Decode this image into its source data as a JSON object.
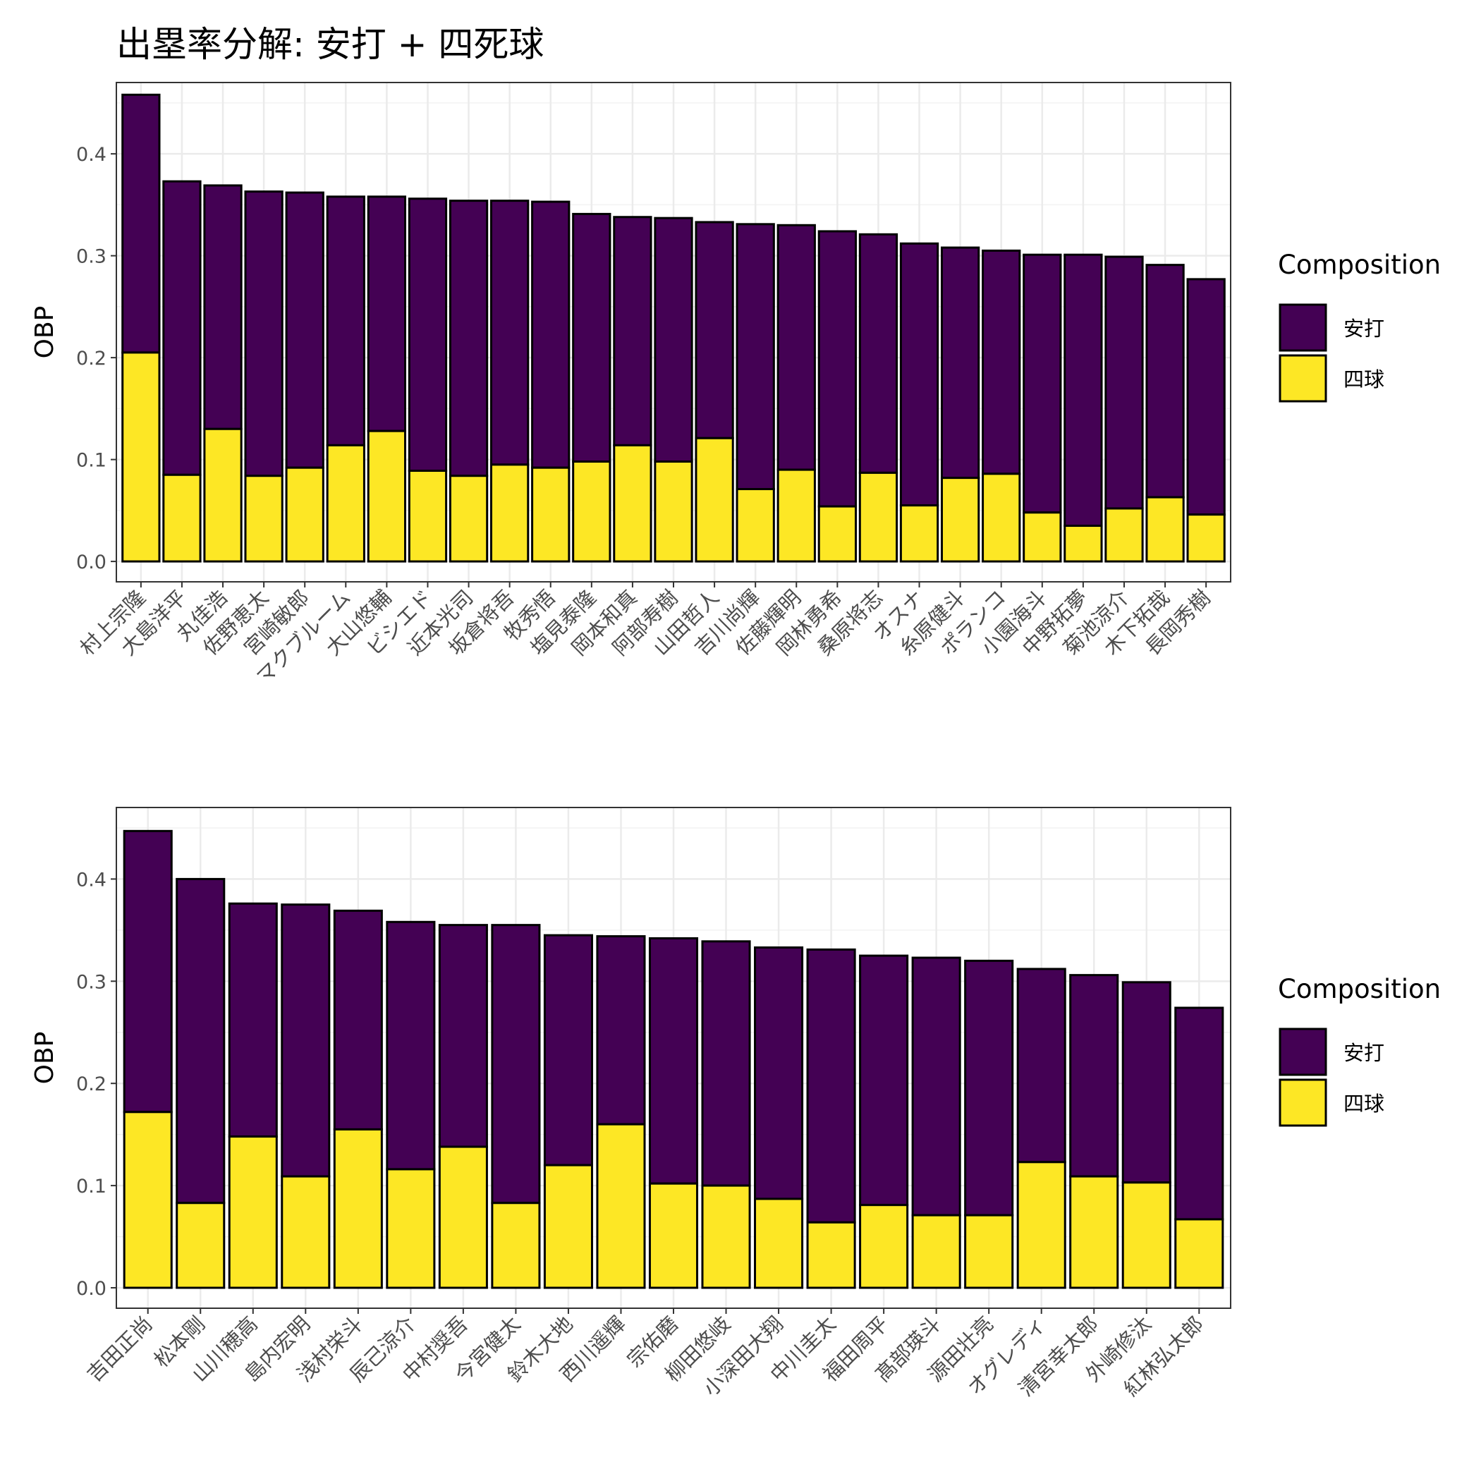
{
  "chart_data": [
    {
      "type": "bar",
      "stacked": true,
      "title": "出塁率分解: 安打 + 四死球",
      "xlabel": "",
      "ylabel": "OBP",
      "ylim": [
        -0.02,
        0.47
      ],
      "yticks": [
        0.0,
        0.1,
        0.2,
        0.3,
        0.4
      ],
      "grid": true,
      "legend": {
        "title": "Composition",
        "position": "right",
        "entries": [
          "安打",
          "四球"
        ]
      },
      "colors": {
        "安打": "#440154",
        "四球": "#FDE725"
      },
      "categories": [
        "村上宗隆",
        "大島洋平",
        "丸佳浩",
        "佐野恵太",
        "宮崎敏郎",
        "マクブルーム",
        "大山悠輔",
        "ビシエド",
        "近本光司",
        "坂倉将吾",
        "牧秀悟",
        "塩見泰隆",
        "岡本和真",
        "阿部寿樹",
        "山田哲人",
        "吉川尚輝",
        "佐藤輝明",
        "岡林勇希",
        "桑原将志",
        "オスナ",
        "糸原健斗",
        "ポランコ",
        "小園海斗",
        "中野拓夢",
        "菊池涼介",
        "木下拓哉",
        "長岡秀樹"
      ],
      "series": [
        {
          "name": "四球",
          "values": [
            0.205,
            0.085,
            0.13,
            0.084,
            0.092,
            0.114,
            0.128,
            0.089,
            0.084,
            0.095,
            0.092,
            0.098,
            0.114,
            0.098,
            0.121,
            0.071,
            0.09,
            0.054,
            0.087,
            0.055,
            0.082,
            0.086,
            0.048,
            0.035,
            0.052,
            0.063,
            0.046
          ]
        },
        {
          "name": "安打",
          "values": [
            0.253,
            0.288,
            0.239,
            0.279,
            0.27,
            0.244,
            0.23,
            0.267,
            0.27,
            0.259,
            0.261,
            0.243,
            0.224,
            0.239,
            0.212,
            0.26,
            0.24,
            0.27,
            0.234,
            0.257,
            0.226,
            0.219,
            0.253,
            0.266,
            0.247,
            0.228,
            0.231
          ]
        }
      ],
      "totals": [
        0.458,
        0.373,
        0.369,
        0.363,
        0.362,
        0.358,
        0.358,
        0.356,
        0.354,
        0.354,
        0.353,
        0.341,
        0.338,
        0.337,
        0.333,
        0.331,
        0.33,
        0.324,
        0.321,
        0.312,
        0.308,
        0.305,
        0.301,
        0.301,
        0.299,
        0.291,
        0.277
      ]
    },
    {
      "type": "bar",
      "stacked": true,
      "title": "",
      "xlabel": "",
      "ylabel": "OBP",
      "ylim": [
        -0.02,
        0.47
      ],
      "yticks": [
        0.0,
        0.1,
        0.2,
        0.3,
        0.4
      ],
      "grid": true,
      "legend": {
        "title": "Composition",
        "position": "right",
        "entries": [
          "安打",
          "四球"
        ]
      },
      "colors": {
        "安打": "#440154",
        "四球": "#FDE725"
      },
      "categories": [
        "吉田正尚",
        "松本剛",
        "山川穂高",
        "島内宏明",
        "浅村栄斗",
        "辰己涼介",
        "中村奨吾",
        "今宮健太",
        "鈴木大地",
        "西川遥輝",
        "宗佑磨",
        "柳田悠岐",
        "小深田大翔",
        "中川圭太",
        "福田周平",
        "髙部瑛斗",
        "源田壮亮",
        "オグレディ",
        "清宮幸太郎",
        "外崎修汰",
        "紅林弘太郎"
      ],
      "series": [
        {
          "name": "四球",
          "values": [
            0.172,
            0.083,
            0.148,
            0.109,
            0.155,
            0.116,
            0.138,
            0.083,
            0.12,
            0.16,
            0.102,
            0.1,
            0.087,
            0.064,
            0.081,
            0.071,
            0.071,
            0.123,
            0.109,
            0.103,
            0.067
          ]
        },
        {
          "name": "安打",
          "values": [
            0.275,
            0.317,
            0.228,
            0.266,
            0.214,
            0.242,
            0.217,
            0.272,
            0.225,
            0.184,
            0.24,
            0.239,
            0.246,
            0.267,
            0.244,
            0.252,
            0.249,
            0.189,
            0.197,
            0.196,
            0.207
          ]
        }
      ],
      "totals": [
        0.447,
        0.4,
        0.376,
        0.375,
        0.369,
        0.358,
        0.355,
        0.355,
        0.345,
        0.344,
        0.342,
        0.339,
        0.333,
        0.331,
        0.325,
        0.323,
        0.32,
        0.312,
        0.306,
        0.299,
        0.274
      ]
    }
  ]
}
